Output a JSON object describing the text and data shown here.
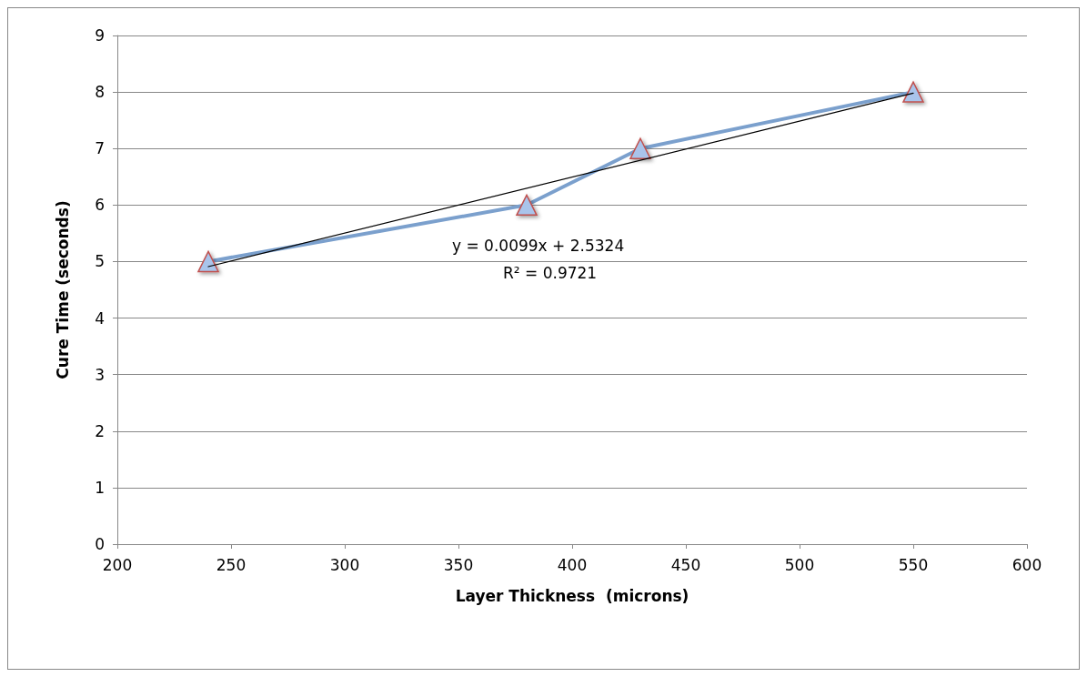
{
  "chart_data": {
    "type": "line",
    "xlabel": "Layer Thickness  (microns)",
    "ylabel": "Cure Time (seconds)",
    "xlim": [
      200,
      600
    ],
    "xticks": [
      200,
      250,
      300,
      350,
      400,
      450,
      500,
      550,
      600
    ],
    "ylim": [
      0,
      9
    ],
    "yticks": [
      0,
      1,
      2,
      3,
      4,
      5,
      6,
      7,
      8,
      9
    ],
    "grid": "y",
    "series": [
      {
        "color": "#7ba0cd",
        "x": [
          240,
          380,
          430,
          550
        ],
        "values": [
          5,
          6,
          7,
          8
        ],
        "marker": "triangle",
        "line_style": "solid"
      },
      {
        "type": "line",
        "color": "#000000",
        "x": [
          240,
          550
        ],
        "values": [
          4.91,
          7.98
        ],
        "marker": "none",
        "line_style": "solid"
      }
    ],
    "annotations": [
      "y = 0.0099x + 2.5324",
      "R² = 0.9721"
    ]
  }
}
